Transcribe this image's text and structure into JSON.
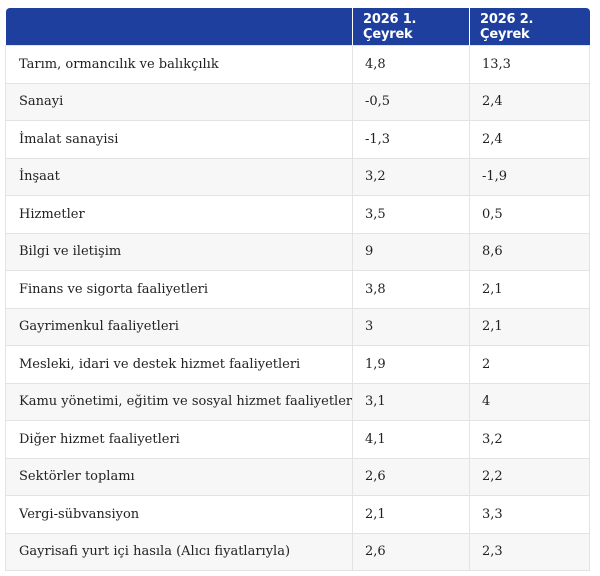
{
  "table": {
    "headers": [
      "",
      "2026 1. Çeyrek",
      "2026 2. Çeyrek"
    ],
    "rows": [
      [
        "Tarım, ormancılık ve balıkçılık",
        "4,8",
        "13,3"
      ],
      [
        "Sanayi",
        "-0,5",
        "2,4"
      ],
      [
        "İmalat sanayisi",
        "-1,3",
        "2,4"
      ],
      [
        "İnşaat",
        "3,2",
        "-1,9"
      ],
      [
        "Hizmetler",
        "3,5",
        "0,5"
      ],
      [
        "Bilgi ve iletişim",
        "9",
        "8,6"
      ],
      [
        "Finans ve sigorta faaliyetleri",
        "3,8",
        "2,1"
      ],
      [
        "Gayrimenkul faaliyetleri",
        "3",
        "2,1"
      ],
      [
        "Mesleki, idari ve destek hizmet faaliyetleri",
        "1,9",
        "2"
      ],
      [
        "Kamu yönetimi, eğitim ve sosyal hizmet faaliyetleri",
        "3,1",
        "4"
      ],
      [
        "Diğer hizmet faaliyetleri",
        "4,1",
        "3,2"
      ],
      [
        "Sektörler toplamı",
        "2,6",
        "2,2"
      ],
      [
        "Vergi-sübvansiyon",
        "2,1",
        "3,3"
      ],
      [
        "Gayrisafi yurt içi hasıla (Alıcı fiyatlarıyla)",
        "2,6",
        "2,3"
      ]
    ]
  }
}
